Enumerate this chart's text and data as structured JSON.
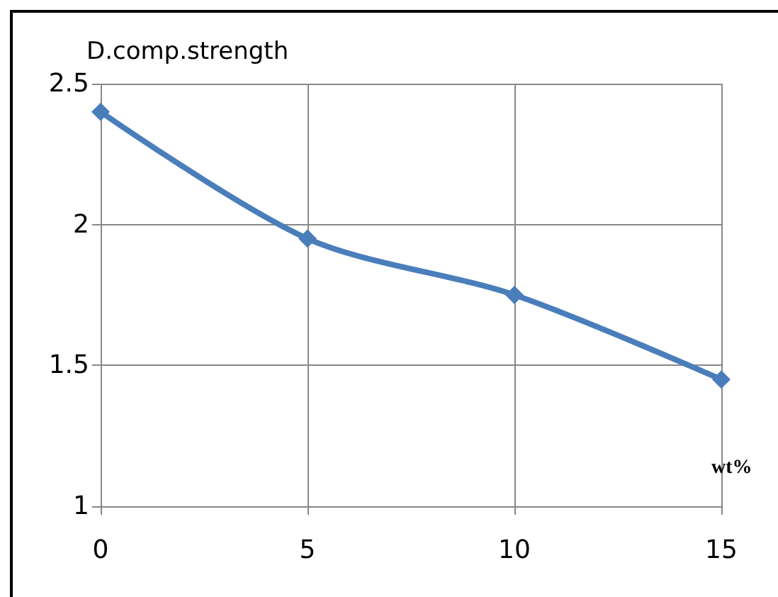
{
  "chart_data": {
    "type": "line",
    "ylabel": "D.comp.strength",
    "xlabel": "wt%",
    "x": [
      0,
      5,
      10,
      15
    ],
    "series": [
      {
        "color": "#4a7ebb",
        "values": [
          2.4,
          1.95,
          1.75,
          1.45
        ]
      }
    ],
    "xlim": [
      0,
      15
    ],
    "xticks": [
      0,
      5,
      10,
      15
    ],
    "ylim": [
      1,
      2.5
    ],
    "yticks": [
      1,
      1.5,
      2,
      2.5
    ],
    "grid": true,
    "marker": "diamond"
  }
}
